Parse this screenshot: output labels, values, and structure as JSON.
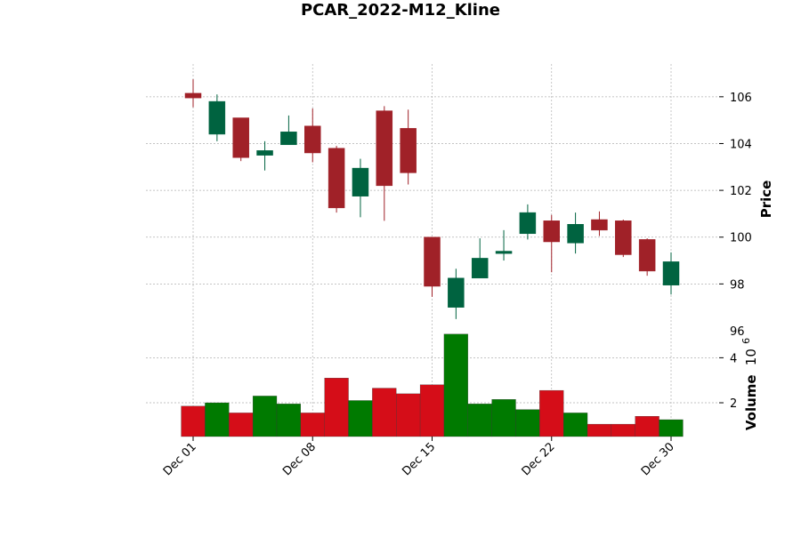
{
  "chart_data": {
    "type": "candlestick",
    "title": "PCAR_2022-M12_Kline",
    "ylabel": "Price",
    "volume_label": "Volume",
    "volume_exponent": "10",
    "volume_exponent_power": "6",
    "price_ylim": [
      96,
      107.4
    ],
    "price_yticks": [
      98,
      100,
      102,
      104,
      106
    ],
    "price_ytick_labels": [
      "98",
      "100",
      "102",
      "104",
      "106"
    ],
    "extra_price_label": "96",
    "volume_ylim": [
      0.5,
      5.2
    ],
    "volume_yticks": [
      2,
      4
    ],
    "volume_ytick_labels": [
      "2",
      "4"
    ],
    "xtick_labels": [
      "Dec 01",
      "Dec 08",
      "Dec 15",
      "Dec 22",
      "Dec 30"
    ],
    "xtick_indices": [
      0,
      5,
      10,
      15,
      20
    ],
    "grid": true,
    "colors": {
      "up_body": "#006340",
      "up_edge": "#006340",
      "down_body": "#a02128",
      "down_edge": "#a02128",
      "up_volume": "#007a00",
      "down_volume": "#d50d18",
      "grid": "#b0b0b0"
    },
    "candles": [
      {
        "date": "2022-12-01",
        "open": 106.15,
        "high": 106.75,
        "low": 105.55,
        "close": 105.95,
        "volume": 1.85
      },
      {
        "date": "2022-12-02",
        "open": 104.4,
        "high": 106.1,
        "low": 104.1,
        "close": 105.8,
        "volume": 2.0
      },
      {
        "date": "2022-12-05",
        "open": 105.1,
        "high": 105.1,
        "low": 103.25,
        "close": 103.4,
        "volume": 1.55
      },
      {
        "date": "2022-12-06",
        "open": 103.5,
        "high": 104.1,
        "low": 102.85,
        "close": 103.7,
        "volume": 2.3
      },
      {
        "date": "2022-12-07",
        "open": 103.95,
        "high": 105.2,
        "low": 103.95,
        "close": 104.5,
        "volume": 1.95
      },
      {
        "date": "2022-12-08",
        "open": 104.75,
        "high": 105.5,
        "low": 103.2,
        "close": 103.6,
        "volume": 1.55
      },
      {
        "date": "2022-12-09",
        "open": 103.8,
        "high": 103.9,
        "low": 101.05,
        "close": 101.25,
        "volume": 3.1
      },
      {
        "date": "2022-12-12",
        "open": 101.75,
        "high": 103.35,
        "low": 100.85,
        "close": 102.95,
        "volume": 2.1
      },
      {
        "date": "2022-12-13",
        "open": 105.4,
        "high": 105.6,
        "low": 100.7,
        "close": 102.2,
        "volume": 2.65
      },
      {
        "date": "2022-12-14",
        "open": 104.65,
        "high": 105.45,
        "low": 102.25,
        "close": 102.75,
        "volume": 2.4
      },
      {
        "date": "2022-12-15",
        "open": 100.0,
        "high": 100.0,
        "low": 97.45,
        "close": 97.9,
        "volume": 2.8
      },
      {
        "date": "2022-12-16",
        "open": 97.0,
        "high": 98.65,
        "low": 96.5,
        "close": 98.25,
        "volume": 5.05
      },
      {
        "date": "2022-12-19",
        "open": 98.25,
        "high": 99.95,
        "low": 98.25,
        "close": 99.1,
        "volume": 1.95
      },
      {
        "date": "2022-12-20",
        "open": 99.3,
        "high": 100.3,
        "low": 99.0,
        "close": 99.4,
        "volume": 2.15
      },
      {
        "date": "2022-12-21",
        "open": 100.15,
        "high": 101.4,
        "low": 99.9,
        "close": 101.05,
        "volume": 1.7
      },
      {
        "date": "2022-12-22",
        "open": 100.7,
        "high": 100.95,
        "low": 98.5,
        "close": 99.8,
        "volume": 2.55
      },
      {
        "date": "2022-12-23",
        "open": 99.75,
        "high": 101.05,
        "low": 99.3,
        "close": 100.55,
        "volume": 1.55
      },
      {
        "date": "2022-12-27",
        "open": 100.75,
        "high": 101.1,
        "low": 100.05,
        "close": 100.3,
        "volume": 1.05
      },
      {
        "date": "2022-12-28",
        "open": 100.7,
        "high": 100.75,
        "low": 99.15,
        "close": 99.25,
        "volume": 1.05
      },
      {
        "date": "2022-12-29",
        "open": 99.9,
        "high": 99.95,
        "low": 98.35,
        "close": 98.55,
        "volume": 1.4
      },
      {
        "date": "2022-12-30",
        "open": 97.95,
        "high": 99.35,
        "low": 97.55,
        "close": 98.95,
        "volume": 1.25
      }
    ]
  }
}
